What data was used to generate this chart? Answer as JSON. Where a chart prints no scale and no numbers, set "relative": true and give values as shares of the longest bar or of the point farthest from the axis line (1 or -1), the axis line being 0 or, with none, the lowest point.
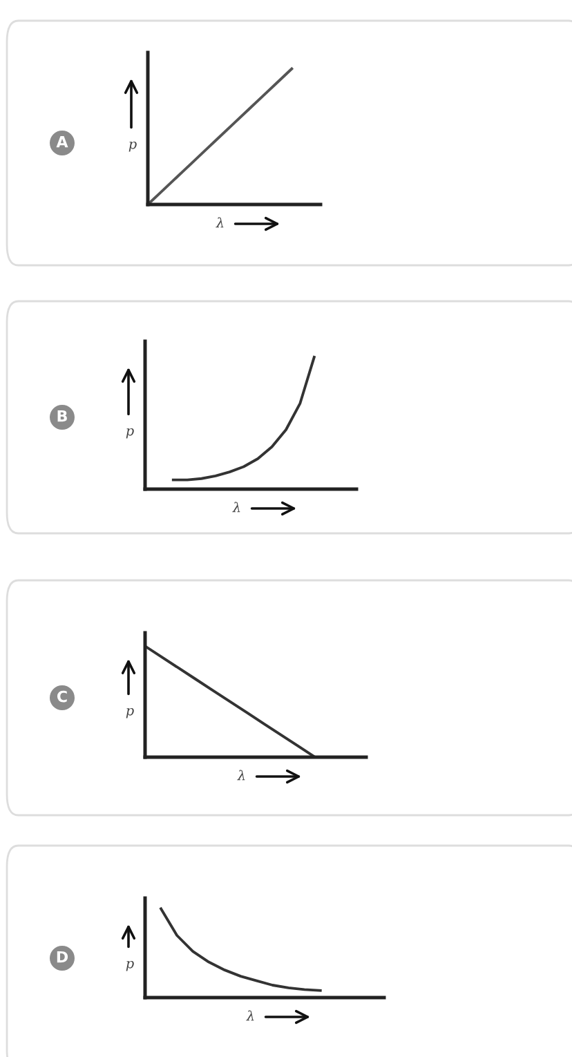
{
  "chart_data": [
    {
      "type": "line",
      "title": "A",
      "xlabel": "λ",
      "ylabel": "p",
      "relative": true,
      "color": "#555555",
      "categories": [
        null,
        null,
        null,
        null,
        null,
        null,
        null,
        null,
        null,
        null,
        null,
        null,
        null
      ],
      "values": [
        0,
        0.1,
        0.2,
        0.3,
        0.4,
        0.5,
        0.6,
        0.7,
        0.8,
        0.9,
        1.0,
        null,
        null
      ]
    },
    {
      "type": "line",
      "title": "B",
      "xlabel": "λ",
      "ylabel": "p",
      "relative": true,
      "color": "#333333",
      "categories": [
        null,
        null,
        null,
        null,
        null,
        null,
        null,
        null,
        null,
        null,
        null,
        null,
        null,
        null,
        null,
        null
      ],
      "values": [
        null,
        null,
        0.07,
        0.07,
        0.08,
        0.1,
        0.13,
        0.17,
        0.23,
        0.32,
        0.45,
        0.65,
        1.0,
        null,
        null,
        null
      ]
    },
    {
      "type": "line",
      "title": "C",
      "xlabel": "λ",
      "ylabel": "p",
      "relative": true,
      "color": "#333333",
      "categories": [
        null,
        null,
        null,
        null,
        null,
        null,
        null,
        null,
        null,
        null,
        null,
        null,
        null,
        null
      ],
      "values": [
        1.0,
        0.9,
        0.8,
        0.7,
        0.6,
        0.5,
        0.4,
        0.3,
        0.2,
        0.1,
        0,
        null,
        null,
        null
      ]
    },
    {
      "type": "line",
      "title": "D",
      "xlabel": "λ",
      "ylabel": "p",
      "relative": true,
      "color": "#333333",
      "categories": [
        null,
        null,
        null,
        null,
        null,
        null,
        null,
        null,
        null,
        null,
        null,
        null,
        null,
        null,
        null,
        null
      ],
      "values": [
        null,
        1.0,
        0.7,
        0.52,
        0.4,
        0.31,
        0.24,
        0.19,
        0.14,
        0.11,
        0.09,
        0.08,
        null,
        null,
        null,
        null
      ]
    }
  ]
}
